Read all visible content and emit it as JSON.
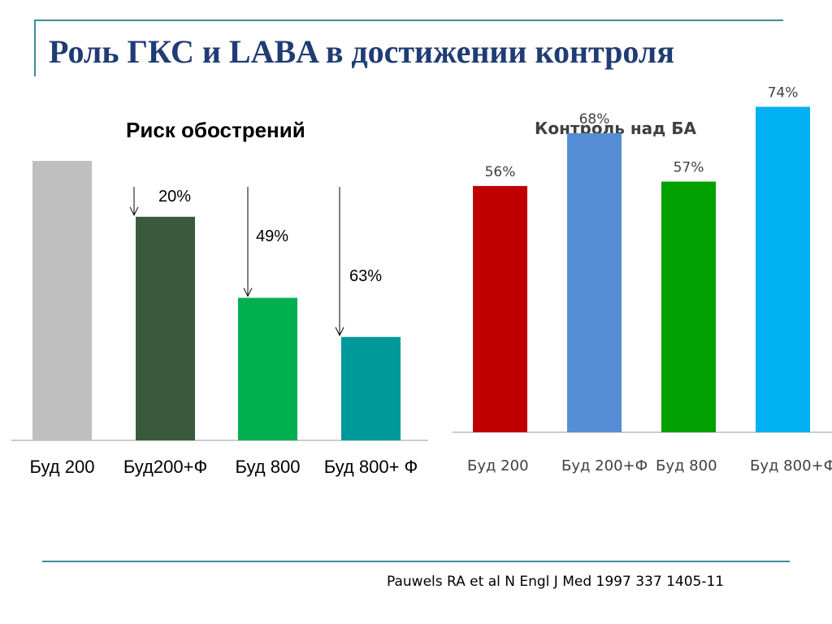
{
  "slide": {
    "title": "Роль ГКС и LABA в достижении контроля",
    "citation": "Pauwels RA et al N Engl J Med 1997 337 1405-11"
  },
  "chart_data": [
    {
      "type": "bar",
      "title": "Риск обострений",
      "categories": [
        "Буд 200",
        "Буд200+Ф",
        "Буд 800",
        "Буд  800+ Ф"
      ],
      "values": [
        100,
        80,
        51,
        37
      ],
      "ylim": [
        0,
        100
      ],
      "colors": [
        "#bfbfbf",
        "#3a5a3c",
        "#00b050",
        "#00999a"
      ],
      "annotations": [
        "20%",
        "49%",
        "63%"
      ],
      "grid": false
    },
    {
      "type": "bar",
      "title": "Контроль над БА",
      "categories": [
        "Буд 200",
        "Буд      200+Ф",
        "Буд 800",
        "Буд      800+Ф"
      ],
      "values": [
        56,
        68,
        57,
        74
      ],
      "data_labels": [
        "56%",
        "68%",
        "57%",
        "74%"
      ],
      "ylim": [
        0,
        80
      ],
      "colors": [
        "#c00000",
        "#558ed5",
        "#00a000",
        "#00b0f0"
      ],
      "grid": false
    }
  ]
}
